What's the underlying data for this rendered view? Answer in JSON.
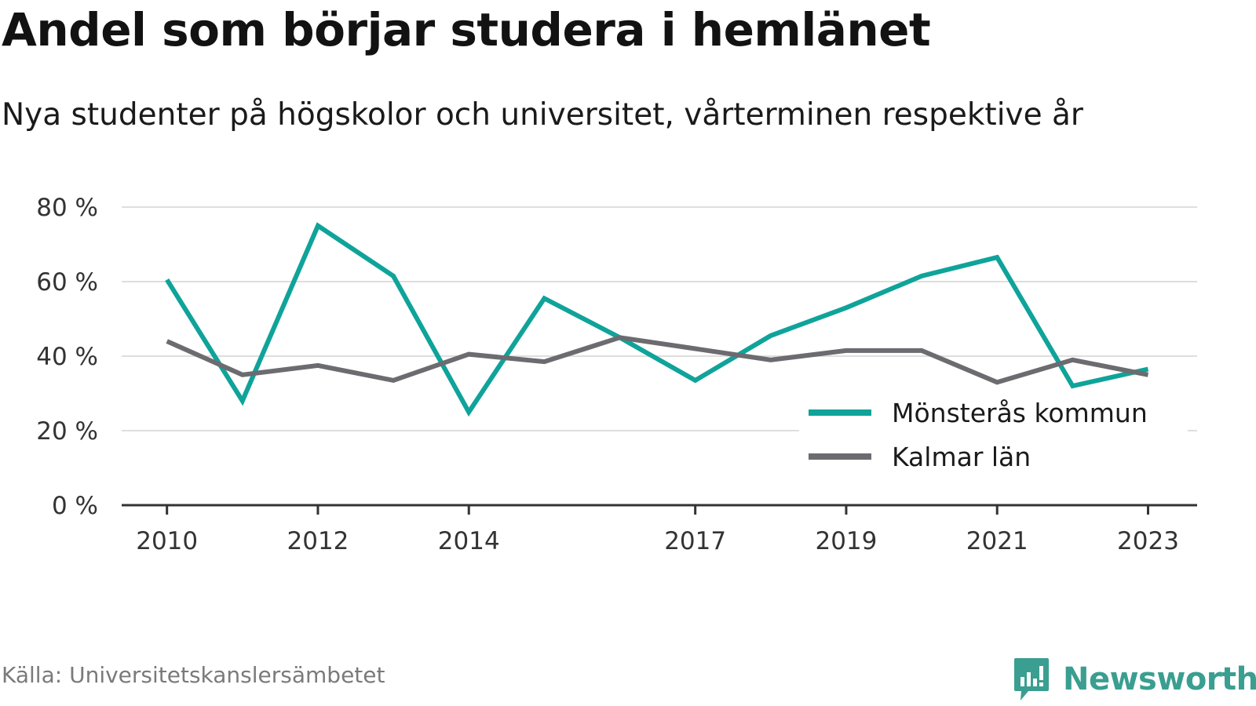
{
  "title": "Andel som börjar studera i hemlänet",
  "subtitle": "Nya studenter på högskolor och universitet, vårterminen respektive år",
  "source": "Källa: Universitetskanslersämbetet",
  "brand": {
    "name": "Newsworthy",
    "color": "#3a9e90",
    "icon": "bar-chart-badge-icon"
  },
  "chart_data": {
    "type": "line",
    "title": "Andel som börjar studera i hemlänet",
    "subtitle": "Nya studenter på högskolor och universitet, vårterminen respektive år",
    "x": [
      2010,
      2011,
      2012,
      2013,
      2014,
      2015,
      2016,
      2017,
      2018,
      2019,
      2020,
      2021,
      2022,
      2023
    ],
    "x_tick_values": [
      2010,
      2012,
      2014,
      2017,
      2019,
      2021,
      2023
    ],
    "x_tick_labels": [
      "2010",
      "2012",
      "2014",
      "2017",
      "2019",
      "2021",
      "2023"
    ],
    "y_tick_values": [
      0,
      20,
      40,
      60,
      80
    ],
    "y_tick_labels": [
      "0 %",
      "20 %",
      "40 %",
      "60 %",
      "80 %"
    ],
    "ylim": [
      0,
      80
    ],
    "xlim": [
      2009.4,
      2023.65
    ],
    "grid": true,
    "legend_position": "bottom-right",
    "series": [
      {
        "name": "Mönsterås kommun",
        "color": "#0fa39a",
        "values": [
          60.5,
          28,
          75,
          61.5,
          25,
          55.5,
          45,
          33.5,
          45.5,
          53,
          61.5,
          66.5,
          32,
          36.5
        ]
      },
      {
        "name": "Kalmar län",
        "color": "#6b6b70",
        "values": [
          44,
          35,
          37.5,
          33.5,
          40.5,
          38.5,
          45,
          42,
          39,
          41.5,
          41.5,
          33,
          39,
          35
        ]
      }
    ]
  }
}
